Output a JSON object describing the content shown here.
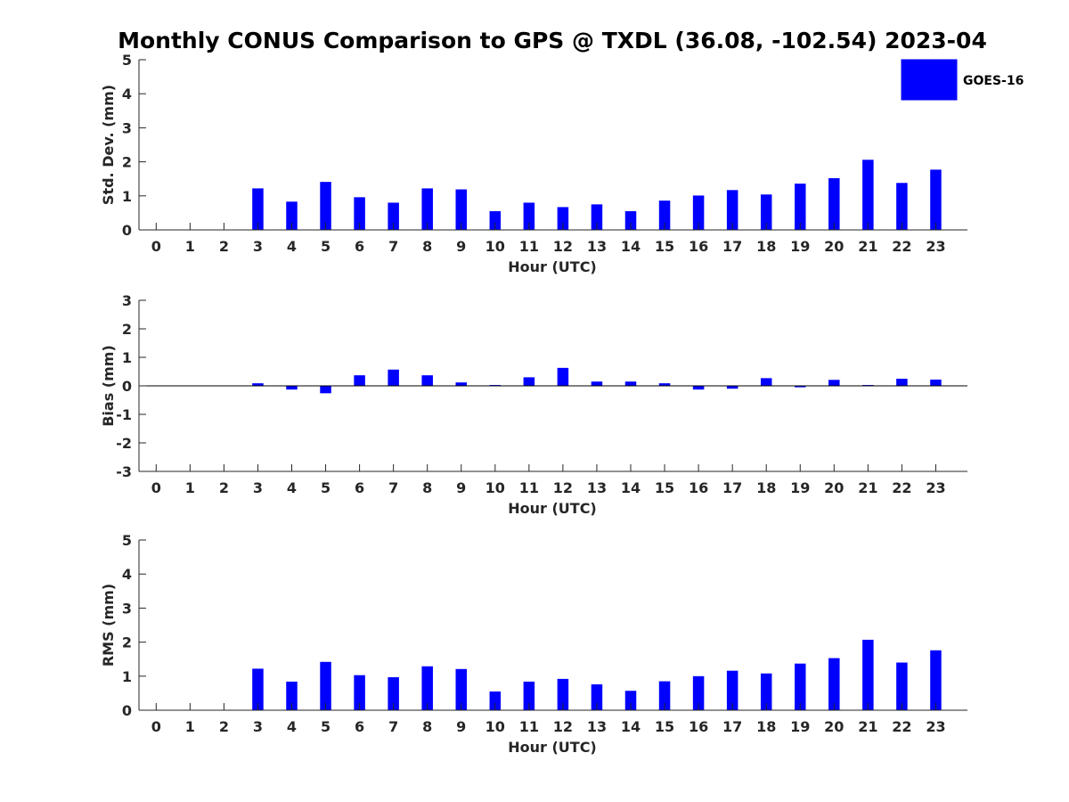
{
  "chart_data": {
    "title": "Monthly CONUS Comparison to GPS @ TXDL (36.08, -102.54) 2023-04",
    "legend": {
      "label": "GOES-16",
      "color": "#0000ff",
      "placement": "top-right"
    },
    "panels": [
      {
        "type": "bar",
        "ylabel": "Std. Dev. (mm)",
        "xlabel": "Hour (UTC)",
        "ylim": [
          0,
          5
        ],
        "yticks": [
          0,
          1,
          2,
          3,
          4,
          5
        ],
        "categories": [
          0,
          1,
          2,
          3,
          4,
          5,
          6,
          7,
          8,
          9,
          10,
          11,
          12,
          13,
          14,
          15,
          16,
          17,
          18,
          19,
          20,
          21,
          22,
          23
        ],
        "values": [
          null,
          null,
          null,
          1.22,
          0.83,
          1.41,
          0.96,
          0.8,
          1.22,
          1.19,
          0.55,
          0.8,
          0.67,
          0.75,
          0.55,
          0.86,
          1.01,
          1.17,
          1.04,
          1.36,
          1.52,
          2.06,
          1.38,
          1.77
        ]
      },
      {
        "type": "bar",
        "ylabel": "Bias (mm)",
        "xlabel": "Hour (UTC)",
        "ylim": [
          -3,
          3
        ],
        "yticks": [
          -3,
          -2,
          -1,
          0,
          1,
          2,
          3
        ],
        "categories": [
          0,
          1,
          2,
          3,
          4,
          5,
          6,
          7,
          8,
          9,
          10,
          11,
          12,
          13,
          14,
          15,
          16,
          17,
          18,
          19,
          20,
          21,
          22,
          23
        ],
        "values": [
          null,
          null,
          null,
          0.09,
          -0.13,
          -0.26,
          0.37,
          0.57,
          0.37,
          0.12,
          0.03,
          0.3,
          0.63,
          0.15,
          0.15,
          0.09,
          -0.13,
          -0.1,
          0.27,
          -0.05,
          0.21,
          0.03,
          0.25,
          0.22
        ]
      },
      {
        "type": "bar",
        "ylabel": "RMS (mm)",
        "xlabel": "Hour (UTC)",
        "ylim": [
          0,
          5
        ],
        "yticks": [
          0,
          1,
          2,
          3,
          4,
          5
        ],
        "categories": [
          0,
          1,
          2,
          3,
          4,
          5,
          6,
          7,
          8,
          9,
          10,
          11,
          12,
          13,
          14,
          15,
          16,
          17,
          18,
          19,
          20,
          21,
          22,
          23
        ],
        "values": [
          null,
          null,
          null,
          1.22,
          0.84,
          1.42,
          1.03,
          0.97,
          1.29,
          1.21,
          0.55,
          0.84,
          0.92,
          0.76,
          0.57,
          0.85,
          1.0,
          1.16,
          1.08,
          1.37,
          1.53,
          2.07,
          1.4,
          1.76
        ]
      }
    ]
  }
}
